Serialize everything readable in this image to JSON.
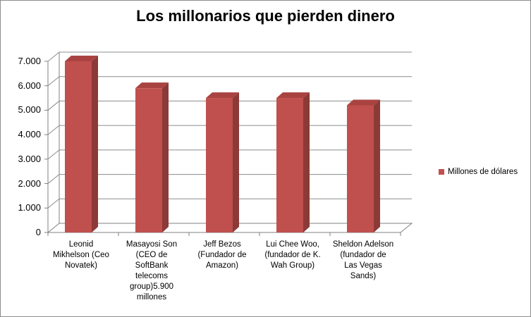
{
  "colors": {
    "bar_front": "#c0504d",
    "bar_side": "#8c3a38",
    "bar_top": "#a94341",
    "grid": "#8c8c8c",
    "wall": "#808080"
  },
  "chart_data": {
    "type": "bar",
    "title": "Los millonarios que pierden dinero",
    "categories": [
      "Leonid Mikhelson (Ceo Novatek)",
      "Masayosi Son (CEO de SoftBank telecoms group)5.900 millones",
      "Jeff Bezos (Fundador de Amazon)",
      "Lui Chee Woo, (fundador de K. Wah Group)",
      "Sheldon Adelson (fundador de Las Vegas Sands)"
    ],
    "category_lines": [
      [
        "Leonid",
        "Mikhelson (Ceo",
        "Novatek)"
      ],
      [
        "Masayosi Son",
        "(CEO de",
        "SoftBank",
        "telecoms",
        "group)5.900",
        "millones"
      ],
      [
        "Jeff Bezos",
        "(Fundador de",
        "Amazon)"
      ],
      [
        "Lui Chee Woo,",
        "(fundador de K.",
        "Wah Group)"
      ],
      [
        "Sheldon Adelson",
        "(fundador de",
        "Las Vegas",
        "Sands)"
      ]
    ],
    "series": [
      {
        "name": "Millones de dólares",
        "values": [
          7000,
          5900,
          5500,
          5500,
          5200
        ]
      }
    ],
    "y_ticks": [
      "0",
      "1.000",
      "2.000",
      "3.000",
      "4.000",
      "5.000",
      "6.000",
      "7.000"
    ],
    "ylim": [
      0,
      7000
    ],
    "grid": true,
    "legend_position": "right",
    "style": "3d-clustered-column"
  }
}
